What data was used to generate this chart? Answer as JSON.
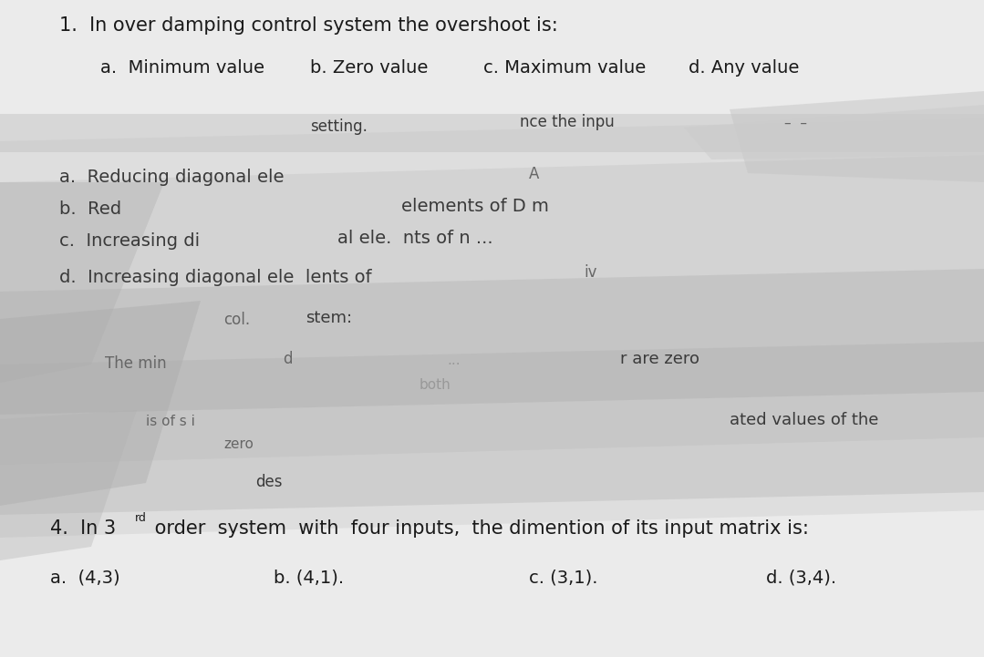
{
  "bg_color": "#e2e2e2",
  "page_color": "#ebebeb",
  "dark_band_color": "#c8c8c8",
  "darker_band_color": "#b8b8b8",
  "text_dark": "#1a1a1a",
  "text_mid": "#3a3a3a",
  "text_faded": "#666666",
  "text_very_faded": "#999999",
  "q1_line": "1.  In over damping control system the overshoot is:",
  "q1_a": "a.  Minimum value",
  "q1_b": "b. Zero value",
  "q1_c": "c. Maximum value",
  "q1_d": "d. Any value",
  "band1_left": "setting.",
  "band1_mid": "nce the inpu",
  "band1_right": "–  –",
  "mid_a": "a.  Reducing diagonal ele",
  "mid_a2": "A",
  "mid_b": "b.  Red",
  "mid_b2": "elements of D m",
  "mid_c": "c.  Increasing di",
  "mid_c2": "al ele.  nts of n ...",
  "mid_d": "d.  Increasing diagonal ele  lents of",
  "mid_d2": "iv",
  "band2_left": "col.",
  "band2_mid": "stem:",
  "band3_left": "The min",
  "band3_mid": "d",
  "band3_mid2": "...",
  "band3_right": "r are zero",
  "band3_sub": "both",
  "band4_left": "is of s i",
  "band4_right": "ated values of the",
  "band4_sub": "zero",
  "band5_mid": "des",
  "q4_pre": "4.  In 3",
  "q4_sup": "rd",
  "q4_post": " order  system  with  four inputs,  the dimention of its input matrix is:",
  "q4_a": "a.  (4,3)",
  "q4_b": "b. (4,1).",
  "q4_c": "c. (3,1).",
  "q4_d": "d. (3,4)."
}
